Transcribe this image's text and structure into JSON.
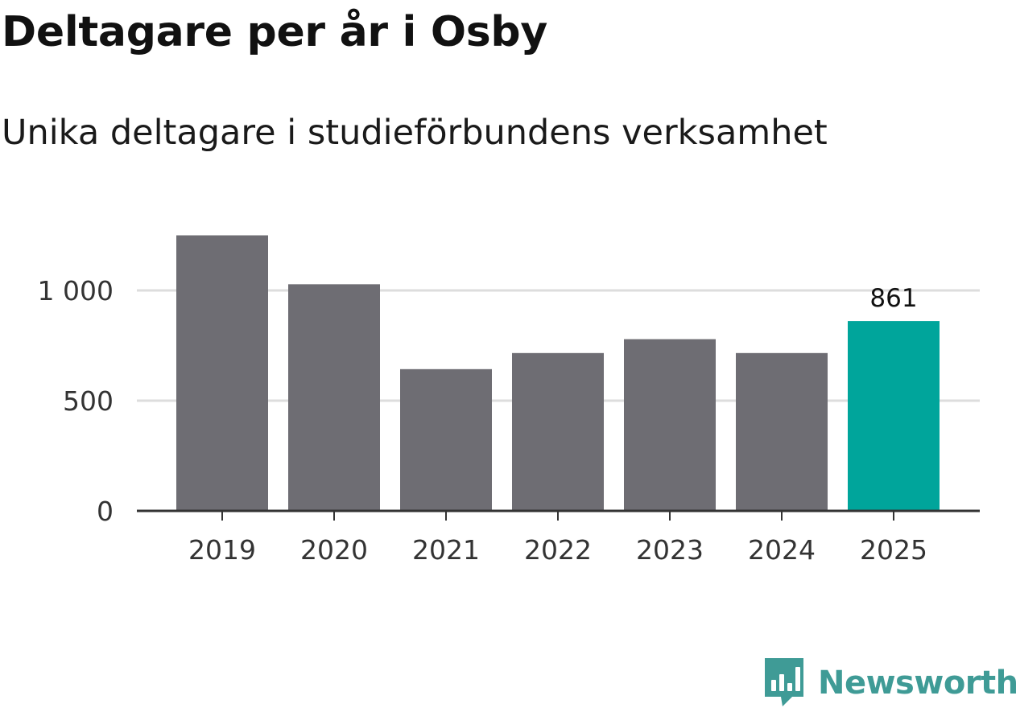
{
  "title": "Deltagare per år i Osby",
  "subtitle": "Unika deltagare i studieförbundens verksamhet",
  "brand": {
    "name": "Newsworthy",
    "icon": "newsworthy-bar-chart-icon",
    "color": "#3f9b96"
  },
  "colors": {
    "bar": "#6e6d73",
    "highlight": "#00a59b",
    "grid": "#dddddd",
    "axis": "#333333"
  },
  "chart_data": {
    "type": "bar",
    "categories": [
      "2019",
      "2020",
      "2021",
      "2022",
      "2023",
      "2024",
      "2025"
    ],
    "values": [
      1250,
      1028,
      643,
      716,
      779,
      716,
      861
    ],
    "highlight_index": 6,
    "data_labels": [
      {
        "category": "2025",
        "text": "861"
      }
    ],
    "y_ticks": [
      0,
      500,
      1000
    ],
    "y_tick_labels": [
      "0",
      "500",
      "1 000"
    ],
    "ylim": [
      0,
      1300
    ],
    "grid": true,
    "xlabel": "",
    "ylabel": ""
  }
}
